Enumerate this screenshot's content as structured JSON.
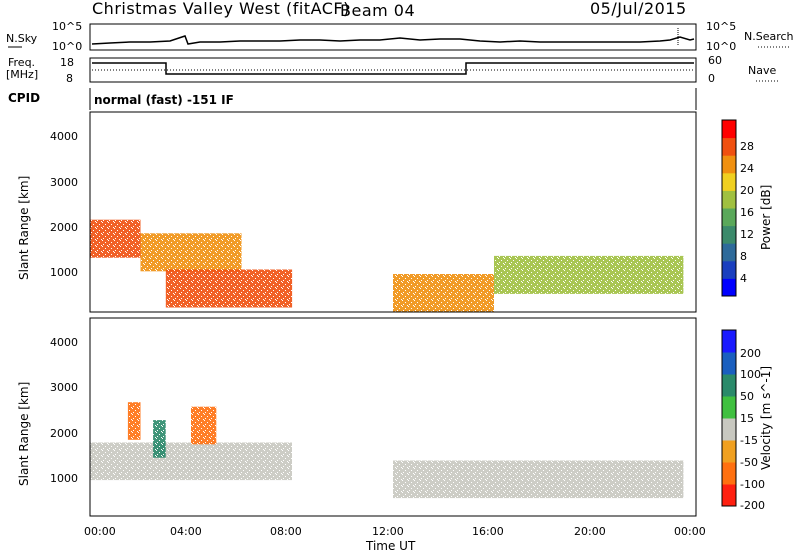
{
  "header": {
    "station": "Christmas Valley West (fitACF)",
    "beam": "Beam 04",
    "date": "05/Jul/2015"
  },
  "panels": {
    "nsky_label": "N.Sky",
    "nsearch_label": "N.Search",
    "nsky_ticks": [
      "10^5",
      "10^0"
    ],
    "nsearch_ticks": [
      "10^5",
      "10^0"
    ],
    "freq_label_1": "Freq.",
    "freq_label_2": "[MHz]",
    "freq_ticks": [
      "18",
      "8"
    ],
    "nave_label": "Nave",
    "nave_ticks": [
      "60",
      "0"
    ],
    "cpid_label": "CPID",
    "cpid_text": "normal (fast) -151 IF"
  },
  "axes": {
    "y_label": "Slant Range [km]",
    "y_ticks": [
      "4000",
      "3000",
      "2000",
      "1000"
    ],
    "x_ticks": [
      "00:00",
      "04:00",
      "08:00",
      "12:00",
      "16:00",
      "20:00",
      "00:00"
    ],
    "x_label": "Time UT"
  },
  "power_scale": {
    "title": "Power [dB]",
    "ticks": [
      "28",
      "24",
      "20",
      "16",
      "12",
      "8",
      "4"
    ],
    "colors": [
      "#0000ff",
      "#1a3fbf",
      "#2e6a9a",
      "#3b8a6b",
      "#5aa85a",
      "#a0c040",
      "#f0d020",
      "#f09010",
      "#f05010",
      "#ff0000"
    ]
  },
  "velocity_scale": {
    "title": "Velocity [m s^-1]",
    "ticks": [
      "200",
      "100",
      "50",
      "15",
      "-15",
      "-50",
      "-100",
      "-200"
    ],
    "colors": [
      "#1a1aff",
      "#1a5fbf",
      "#2a8a6a",
      "#40c040",
      "#c8c8c0",
      "#f0a020",
      "#ff7010",
      "#ff2010"
    ]
  },
  "chart_data": [
    {
      "type": "heatmap",
      "title": "Power",
      "x": [
        "00:00",
        "04:00",
        "08:00",
        "12:00",
        "16:00",
        "20:00",
        "00:00"
      ],
      "ylabel": "Slant Range [km]",
      "xlabel": "Time UT",
      "ylim": [
        180,
        4600
      ],
      "zlim": [
        0,
        30
      ],
      "regions": [
        {
          "t_start": 0.0,
          "t_end": 2.0,
          "range_center": 1800,
          "dB": 28
        },
        {
          "t_start": 2.0,
          "t_end": 6.0,
          "range_center": 1500,
          "dB": 24
        },
        {
          "t_start": 3.0,
          "t_end": 8.0,
          "range_center": 700,
          "dB": 26
        },
        {
          "t_start": 12.0,
          "t_end": 16.0,
          "range_center": 600,
          "dB": 22
        },
        {
          "t_start": 16.0,
          "t_end": 23.5,
          "range_center": 1000,
          "dB": 16
        }
      ]
    },
    {
      "type": "heatmap",
      "title": "Velocity",
      "x": [
        "00:00",
        "04:00",
        "08:00",
        "12:00",
        "16:00",
        "20:00",
        "00:00"
      ],
      "ylabel": "Slant Range [km]",
      "xlabel": "Time UT",
      "ylim": [
        180,
        4600
      ],
      "zlim": [
        -200,
        200
      ],
      "regions": [
        {
          "t_start": 0.0,
          "t_end": 8.0,
          "range_center": 1400,
          "velocity": 0
        },
        {
          "t_start": 2.5,
          "t_end": 3.0,
          "range_center": 1900,
          "velocity": 60
        },
        {
          "t_start": 1.5,
          "t_end": 2.0,
          "range_center": 2300,
          "velocity": -60
        },
        {
          "t_start": 4.0,
          "t_end": 5.0,
          "range_center": 2200,
          "velocity": -60
        },
        {
          "t_start": 12.0,
          "t_end": 23.5,
          "range_center": 1000,
          "velocity": 0
        }
      ]
    }
  ]
}
